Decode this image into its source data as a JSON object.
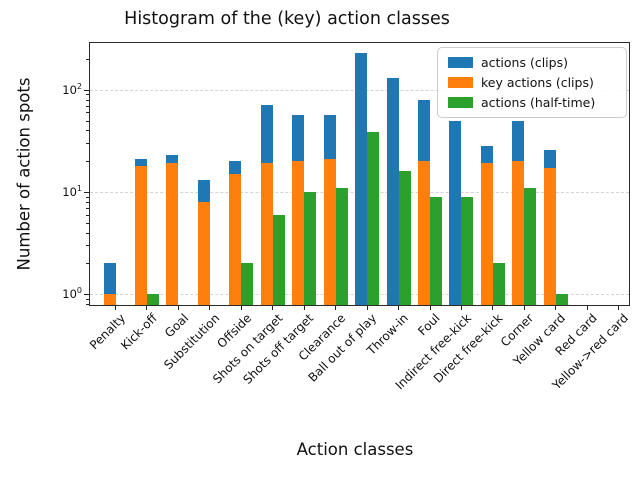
{
  "chart_data": {
    "type": "bar",
    "title": "Histogram of the (key) action classes",
    "xlabel": "Action classes",
    "ylabel": "Number of action spots",
    "y_scale": "log",
    "ylim": [
      0.76,
      296
    ],
    "grid": "dashed horizontal major gridlines",
    "legend_position": "upper right",
    "bar_layout": "blue and orange bars overlap at same x (orange in front); green bar offset to the right",
    "categories": [
      "Penalty",
      "Kick-off",
      "Goal",
      "Substitution",
      "Offside",
      "Shots on target",
      "Shots off target",
      "Clearance",
      "Ball out of play",
      "Throw-in",
      "Foul",
      "Indirect free-kick",
      "Direct free-kick",
      "Corner",
      "Yellow card",
      "Red card",
      "Yellow->red card"
    ],
    "series": [
      {
        "name": "actions (clips)",
        "color": "#1f77b4",
        "values": [
          2,
          21,
          23,
          13,
          20,
          71,
          57,
          57,
          230,
          130,
          80,
          49,
          28,
          49,
          26,
          0,
          0
        ]
      },
      {
        "name": "key actions (clips)",
        "color": "#ff7f0e",
        "values": [
          1,
          18,
          19,
          8,
          15,
          19,
          20,
          21,
          0,
          0,
          20,
          0,
          19,
          20,
          17,
          0,
          0
        ]
      },
      {
        "name": "actions (half-time)",
        "color": "#2ca02c",
        "values": [
          0,
          1,
          0,
          0,
          2,
          6,
          10,
          11,
          39,
          16,
          9,
          9,
          2,
          11,
          1,
          0,
          0
        ]
      }
    ],
    "yticks": [
      {
        "value": 1,
        "label": "10^0"
      },
      {
        "value": 10,
        "label": "10^1"
      },
      {
        "value": 100,
        "label": "10^2"
      }
    ]
  }
}
